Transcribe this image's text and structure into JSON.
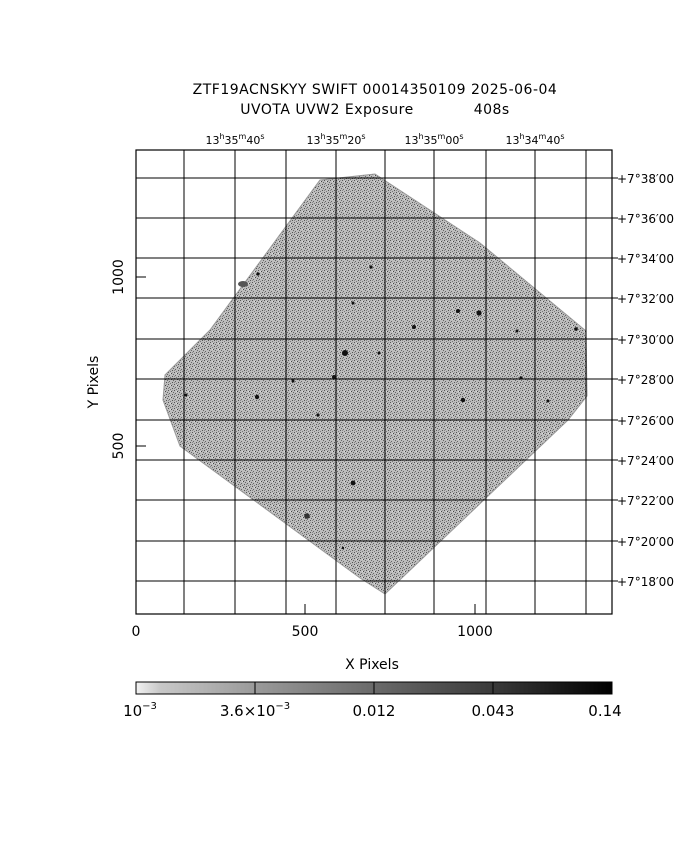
{
  "title": {
    "line1": "ZTF19ACNSKYY SWIFT 00014350109 2025-06-04",
    "line2_left": "UVOTA UVW2 Exposure",
    "line2_right": "408s"
  },
  "axes": {
    "xlabel": "X Pixels",
    "ylabel": "Y Pixels",
    "x_ticks": [
      {
        "value": 0,
        "label": "0"
      },
      {
        "value": 500,
        "label": "500"
      },
      {
        "value": 1000,
        "label": "1000"
      }
    ],
    "y_ticks": [
      {
        "value": 500,
        "label": "500"
      },
      {
        "value": 1000,
        "label": "1000"
      }
    ],
    "ra_ticks": [
      {
        "h": "13",
        "m": "35",
        "s": "40"
      },
      {
        "h": "13",
        "m": "35",
        "s": "20"
      },
      {
        "h": "13",
        "m": "35",
        "s": "00"
      },
      {
        "h": "13",
        "m": "34",
        "s": "40"
      }
    ],
    "dec_ticks": [
      "+7°38′00",
      "+7°36′00",
      "+7°34′00",
      "+7°32′00",
      "+7°30′00",
      "+7°28′00",
      "+7°26′00",
      "+7°24′00",
      "+7°22′00",
      "+7°20′00",
      "+7°18′00"
    ]
  },
  "colorbar": {
    "ticks": [
      {
        "label": "10",
        "sup": "−3"
      },
      {
        "label": "3.6×10",
        "sup": "−3"
      },
      {
        "label": "0.012",
        "sup": ""
      },
      {
        "label": "0.043",
        "sup": ""
      },
      {
        "label": "0.14",
        "sup": ""
      }
    ]
  },
  "colors": {
    "background": "#ffffff",
    "ink": "#000000",
    "noise": "#8a8a8a"
  }
}
